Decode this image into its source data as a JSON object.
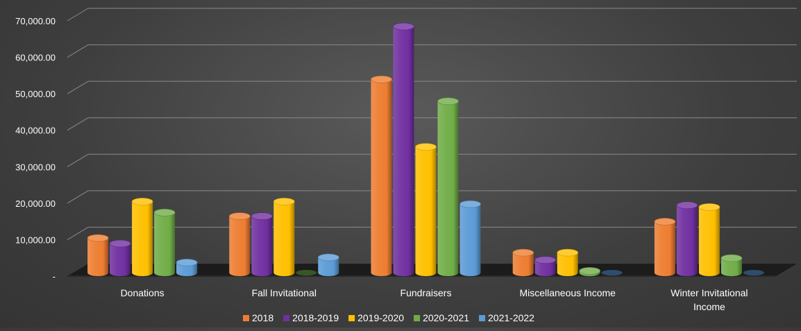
{
  "chart_data": {
    "type": "bar",
    "style": "3d-cylinder",
    "title": "",
    "xlabel": "",
    "ylabel": "",
    "ylim": [
      0,
      70000
    ],
    "y_ticks": [
      {
        "value": 0,
        "label": "-"
      },
      {
        "value": 10000,
        "label": "10,000.00"
      },
      {
        "value": 20000,
        "label": "20,000.00"
      },
      {
        "value": 30000,
        "label": "30,000.00"
      },
      {
        "value": 40000,
        "label": "40,000.00"
      },
      {
        "value": 50000,
        "label": "50,000.00"
      },
      {
        "value": 60000,
        "label": "60,000.00"
      },
      {
        "value": 70000,
        "label": "70,000.00"
      }
    ],
    "grid": true,
    "legend_position": "bottom",
    "categories": [
      [
        "Donations"
      ],
      [
        "Fall Invitational"
      ],
      [
        "Fundraisers"
      ],
      [
        "Miscellaneous Income"
      ],
      [
        "Winter Invitational",
        "Income"
      ]
    ],
    "series": [
      {
        "name": "2018",
        "color": "#ED7D31",
        "values": [
          9500,
          15500,
          53000,
          5500,
          14000
        ]
      },
      {
        "name": "2018-2019",
        "color": "#7030A0",
        "values": [
          8000,
          15500,
          67500,
          3500,
          18500
        ]
      },
      {
        "name": "2019-2020",
        "color": "#FFC000",
        "values": [
          19500,
          19500,
          34500,
          5500,
          18000
        ]
      },
      {
        "name": "2020-2021",
        "color": "#70AD47",
        "values": [
          16500,
          0,
          47000,
          500,
          4000
        ]
      },
      {
        "name": "2021-2022",
        "color": "#5B9BD5",
        "values": [
          2800,
          4200,
          18800,
          0,
          0
        ]
      }
    ]
  }
}
